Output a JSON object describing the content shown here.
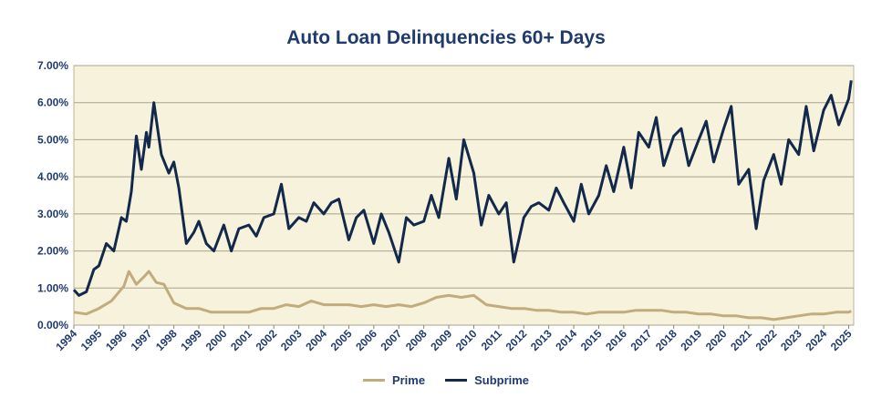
{
  "chart_data": {
    "type": "line",
    "title": "Auto Loan Delinquencies 60+ Days",
    "xlabel": "",
    "ylabel": "",
    "x_range": [
      1994,
      2025.2
    ],
    "ylim": [
      0,
      7
    ],
    "y_ticks": [
      "0.00%",
      "1.00%",
      "2.00%",
      "3.00%",
      "4.00%",
      "5.00%",
      "6.00%",
      "7.00%"
    ],
    "x_ticks": [
      "1994",
      "1995",
      "1996",
      "1997",
      "1998",
      "1999",
      "2000",
      "2001",
      "2002",
      "2003",
      "2004",
      "2005",
      "2006",
      "2007",
      "2008",
      "2009",
      "2010",
      "2011",
      "2012",
      "2013",
      "2014",
      "2015",
      "2016",
      "2017",
      "2018",
      "2019",
      "2020",
      "2021",
      "2022",
      "2023",
      "2024",
      "2025"
    ],
    "grid": "horizontal",
    "legend_position": "bottom",
    "background_color": "#f6f2dc",
    "series": [
      {
        "name": "Prime",
        "color": "#c2ab7c",
        "x": [
          1994.0,
          1994.5,
          1995.0,
          1995.5,
          1996.0,
          1996.2,
          1996.5,
          1996.8,
          1997.0,
          1997.3,
          1997.6,
          1998.0,
          1998.5,
          1999.0,
          1999.5,
          2000.0,
          2000.5,
          2001.0,
          2001.5,
          2002.0,
          2002.5,
          2003.0,
          2003.5,
          2004.0,
          2004.5,
          2005.0,
          2005.5,
          2006.0,
          2006.5,
          2007.0,
          2007.5,
          2008.0,
          2008.5,
          2009.0,
          2009.5,
          2010.0,
          2010.5,
          2011.0,
          2011.5,
          2012.0,
          2012.5,
          2013.0,
          2013.5,
          2014.0,
          2014.5,
          2015.0,
          2015.5,
          2016.0,
          2016.5,
          2017.0,
          2017.5,
          2018.0,
          2018.5,
          2019.0,
          2019.5,
          2020.0,
          2020.5,
          2021.0,
          2021.5,
          2022.0,
          2022.5,
          2023.0,
          2023.5,
          2024.0,
          2024.5,
          2025.0,
          2025.1
        ],
        "values": [
          0.35,
          0.3,
          0.45,
          0.65,
          1.05,
          1.45,
          1.1,
          1.3,
          1.45,
          1.15,
          1.1,
          0.6,
          0.45,
          0.45,
          0.35,
          0.35,
          0.35,
          0.35,
          0.45,
          0.45,
          0.55,
          0.5,
          0.65,
          0.55,
          0.55,
          0.55,
          0.5,
          0.55,
          0.5,
          0.55,
          0.5,
          0.6,
          0.75,
          0.8,
          0.75,
          0.8,
          0.55,
          0.5,
          0.45,
          0.45,
          0.4,
          0.4,
          0.35,
          0.35,
          0.3,
          0.35,
          0.35,
          0.35,
          0.4,
          0.4,
          0.4,
          0.35,
          0.35,
          0.3,
          0.3,
          0.25,
          0.25,
          0.2,
          0.2,
          0.15,
          0.2,
          0.25,
          0.3,
          0.3,
          0.35,
          0.35,
          0.38
        ]
      },
      {
        "name": "Subprime",
        "color": "#13294b",
        "x": [
          1994.0,
          1994.2,
          1994.5,
          1994.8,
          1995.0,
          1995.3,
          1995.6,
          1995.9,
          1996.1,
          1996.3,
          1996.5,
          1996.7,
          1996.9,
          1997.0,
          1997.2,
          1997.5,
          1997.8,
          1998.0,
          1998.2,
          1998.5,
          1998.8,
          1999.0,
          1999.3,
          1999.6,
          2000.0,
          2000.3,
          2000.6,
          2001.0,
          2001.3,
          2001.6,
          2002.0,
          2002.3,
          2002.6,
          2003.0,
          2003.3,
          2003.6,
          2004.0,
          2004.3,
          2004.6,
          2005.0,
          2005.3,
          2005.6,
          2006.0,
          2006.3,
          2006.6,
          2007.0,
          2007.3,
          2007.6,
          2008.0,
          2008.3,
          2008.6,
          2009.0,
          2009.3,
          2009.6,
          2010.0,
          2010.3,
          2010.6,
          2011.0,
          2011.3,
          2011.6,
          2012.0,
          2012.3,
          2012.6,
          2013.0,
          2013.3,
          2013.6,
          2014.0,
          2014.3,
          2014.6,
          2015.0,
          2015.3,
          2015.6,
          2016.0,
          2016.3,
          2016.6,
          2017.0,
          2017.3,
          2017.6,
          2018.0,
          2018.3,
          2018.6,
          2019.0,
          2019.3,
          2019.6,
          2020.0,
          2020.3,
          2020.6,
          2021.0,
          2021.3,
          2021.6,
          2022.0,
          2022.3,
          2022.6,
          2023.0,
          2023.3,
          2023.6,
          2024.0,
          2024.3,
          2024.6,
          2025.0,
          2025.1
        ],
        "values": [
          0.95,
          0.8,
          0.9,
          1.5,
          1.6,
          2.2,
          2.0,
          2.9,
          2.8,
          3.6,
          5.1,
          4.2,
          5.2,
          4.8,
          6.0,
          4.6,
          4.1,
          4.4,
          3.7,
          2.2,
          2.5,
          2.8,
          2.2,
          2.0,
          2.7,
          2.0,
          2.6,
          2.7,
          2.4,
          2.9,
          3.0,
          3.8,
          2.6,
          2.9,
          2.8,
          3.3,
          3.0,
          3.3,
          3.4,
          2.3,
          2.9,
          3.1,
          2.2,
          3.0,
          2.5,
          1.7,
          2.9,
          2.7,
          2.8,
          3.5,
          2.9,
          4.5,
          3.4,
          5.0,
          4.1,
          2.7,
          3.5,
          3.0,
          3.3,
          1.7,
          2.9,
          3.2,
          3.3,
          3.1,
          3.7,
          3.3,
          2.8,
          3.8,
          3.0,
          3.5,
          4.3,
          3.6,
          4.8,
          3.7,
          5.2,
          4.8,
          5.6,
          4.3,
          5.1,
          5.3,
          4.3,
          5.0,
          5.5,
          4.4,
          5.3,
          5.9,
          3.8,
          4.2,
          2.6,
          3.9,
          4.6,
          3.8,
          5.0,
          4.6,
          5.9,
          4.7,
          5.8,
          6.2,
          5.4,
          6.1,
          6.6
        ]
      }
    ]
  }
}
